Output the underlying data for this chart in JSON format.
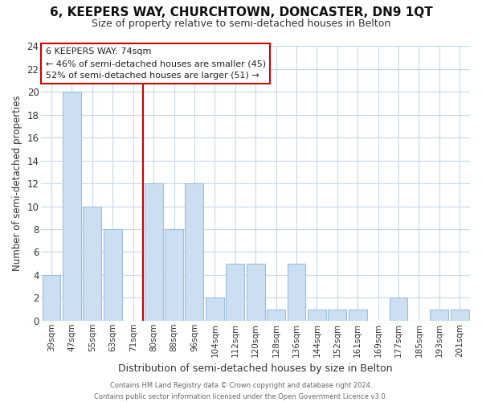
{
  "title": "6, KEEPERS WAY, CHURCHTOWN, DONCASTER, DN9 1QT",
  "subtitle": "Size of property relative to semi-detached houses in Belton",
  "xlabel": "Distribution of semi-detached houses by size in Belton",
  "ylabel": "Number of semi-detached properties",
  "footer_line1": "Contains HM Land Registry data © Crown copyright and database right 2024.",
  "footer_line2": "Contains public sector information licensed under the Open Government Licence v3.0.",
  "bin_labels": [
    "39sqm",
    "47sqm",
    "55sqm",
    "63sqm",
    "71sqm",
    "80sqm",
    "88sqm",
    "96sqm",
    "104sqm",
    "112sqm",
    "120sqm",
    "128sqm",
    "136sqm",
    "144sqm",
    "152sqm",
    "161sqm",
    "169sqm",
    "177sqm",
    "185sqm",
    "193sqm",
    "201sqm"
  ],
  "bar_values": [
    4,
    20,
    10,
    8,
    0,
    12,
    8,
    12,
    2,
    5,
    5,
    1,
    5,
    1,
    1,
    1,
    0,
    2,
    0,
    1,
    1
  ],
  "bar_color": "#ccdff2",
  "bar_edgecolor": "#9dbfdd",
  "highlight_x_label": "71sqm",
  "highlight_line_color": "#cc0000",
  "annotation_title": "6 KEEPERS WAY: 74sqm",
  "annotation_line1": "← 46% of semi-detached houses are smaller (45)",
  "annotation_line2": "52% of semi-detached houses are larger (51) →",
  "annotation_box_edgecolor": "#cc0000",
  "ylim": [
    0,
    24
  ],
  "yticks": [
    0,
    2,
    4,
    6,
    8,
    10,
    12,
    14,
    16,
    18,
    20,
    22,
    24
  ],
  "grid_color": "#c8d8e8",
  "background_color": "#ffffff",
  "title_fontsize": 11,
  "subtitle_fontsize": 9
}
